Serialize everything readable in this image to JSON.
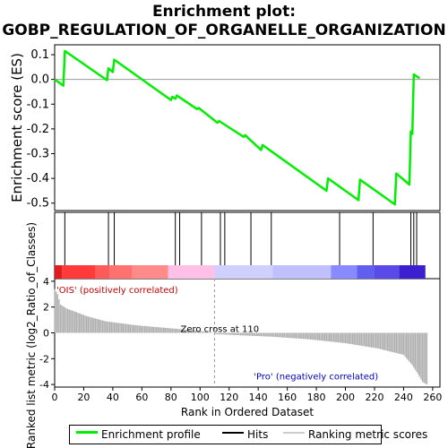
{
  "title_line1": "Enrichment plot:",
  "title_line2": "GOBP_REGULATION_OF_ORGANELLE_ORGANIZATION",
  "legend": {
    "profile": "Enrichment profile",
    "hits": "Hits",
    "ranking": "Ranking metric scores"
  },
  "colors": {
    "profile": "#00ee00",
    "hits": "#000000",
    "metric": "#b0b0b0",
    "pos_label": "#cc0000",
    "neg_label": "#0000cc"
  },
  "chart_data": [
    {
      "type": "line",
      "name": "enrichment",
      "ylabel": "Enrichment score (ES)",
      "ylim": [
        -0.53,
        0.14
      ],
      "yticks": [
        0.1,
        0.0,
        -0.1,
        -0.2,
        -0.3,
        -0.4,
        -0.5
      ],
      "ytick_labels": [
        "0.1",
        "0.0",
        "-0.1",
        "-0.2",
        "-0.3",
        "-0.4",
        "-0.5"
      ],
      "xlim": [
        0,
        265
      ],
      "grid": false,
      "series": [
        {
          "x": [
            0,
            6,
            7,
            36,
            37,
            40,
            41,
            80,
            81,
            83,
            84,
            98,
            99,
            112,
            113,
            130,
            131,
            142,
            143,
            187,
            188,
            209,
            210,
            234,
            235,
            244,
            245,
            246,
            247,
            251
          ],
          "y": [
            0.0,
            -0.025,
            0.115,
            -0.003,
            0.045,
            0.03,
            0.08,
            -0.083,
            -0.07,
            -0.078,
            -0.065,
            -0.12,
            -0.115,
            -0.175,
            -0.168,
            -0.232,
            -0.225,
            -0.285,
            -0.265,
            -0.45,
            -0.4,
            -0.488,
            -0.405,
            -0.505,
            -0.38,
            -0.425,
            -0.21,
            -0.22,
            0.02,
            0.005
          ]
        }
      ]
    },
    {
      "type": "hits",
      "name": "hits",
      "xlim": [
        0,
        265
      ],
      "x": [
        7,
        37,
        41,
        83,
        86,
        101,
        114,
        117,
        135,
        149,
        196,
        219,
        245,
        247,
        249
      ]
    },
    {
      "type": "bar",
      "name": "ranking-metric",
      "xlabel": "Rank in Ordered Dataset",
      "ylabel": "Ranked list metric (log2_Ratio_of_Classes)",
      "ylim": [
        -4.2,
        4.2
      ],
      "yticks": [
        4,
        2,
        0,
        -2,
        -4
      ],
      "ytick_labels": [
        "4",
        "2",
        "0",
        "-2",
        "-4"
      ],
      "xlim": [
        0,
        265
      ],
      "xticks": [
        0,
        20,
        40,
        60,
        80,
        100,
        120,
        140,
        160,
        180,
        200,
        220,
        240,
        260
      ],
      "xtick_labels": [
        "0",
        "20",
        "40",
        "60",
        "80",
        "100",
        "120",
        "140",
        "160",
        "180",
        "200",
        "220",
        "240",
        "260"
      ],
      "profile_points": [
        [
          0,
          3.4
        ],
        [
          2,
          3.0
        ],
        [
          4,
          2.2
        ],
        [
          8,
          1.9
        ],
        [
          15,
          1.6
        ],
        [
          22,
          1.3
        ],
        [
          35,
          0.9
        ],
        [
          55,
          0.6
        ],
        [
          80,
          0.35
        ],
        [
          100,
          0.15
        ],
        [
          110,
          0.0
        ],
        [
          111,
          -0.1
        ],
        [
          130,
          -0.2
        ],
        [
          150,
          -0.3
        ],
        [
          175,
          -0.5
        ],
        [
          200,
          -0.8
        ],
        [
          222,
          -1.2
        ],
        [
          240,
          -1.7
        ],
        [
          246,
          -2.5
        ],
        [
          250,
          -3.2
        ],
        [
          253,
          -3.8
        ],
        [
          256,
          -4.0
        ]
      ],
      "zero_cross_rank": 110,
      "zero_cross_label": "Zero cross at 110",
      "pos_label": "'OIS' (positively correlated)",
      "neg_label": "'Pro' (negatively correlated)",
      "heat_stops": [
        {
          "x": 0,
          "color": "#e41a1c"
        },
        {
          "x": 5,
          "color": "#ff3a3a"
        },
        {
          "x": 28,
          "color": "#ff5a5a"
        },
        {
          "x": 38,
          "color": "#ff7070"
        },
        {
          "x": 53,
          "color": "#ff8a8a"
        },
        {
          "x": 78,
          "color": "#ffc0e8"
        },
        {
          "x": 110,
          "color": "#d0d0ff"
        },
        {
          "x": 150,
          "color": "#c0c0ff"
        },
        {
          "x": 190,
          "color": "#8a8aff"
        },
        {
          "x": 208,
          "color": "#6060f0"
        },
        {
          "x": 220,
          "color": "#5a4ae8"
        },
        {
          "x": 237,
          "color": "#3a20d0"
        },
        {
          "x": 255,
          "color": "#2a00c0"
        }
      ]
    }
  ]
}
